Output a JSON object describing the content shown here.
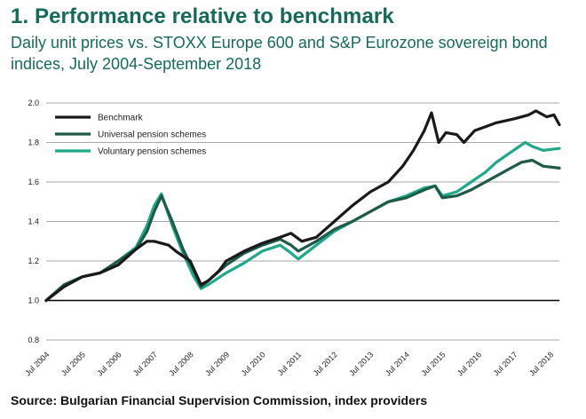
{
  "title": "1. Performance relative to benchmark",
  "subtitle": "Daily unit prices vs. STOXX Europe 600 and S&P Eurozone sovereign bond indices, July 2004-September 2018",
  "source": "Source: Bulgarian Financial Supervision Commission, index providers",
  "colors": {
    "title": "#166a5a",
    "benchmark": "#1a1a1a",
    "universal": "#1e5a48",
    "voluntary": "#1fa98a",
    "grid": "#555555",
    "baseline": "#000000"
  },
  "chart_data": {
    "type": "line",
    "ylim": [
      0.8,
      2.0
    ],
    "yticks": [
      "2.0",
      "1.8",
      "1.6",
      "1.4",
      "1.2",
      "1.0",
      "0.8"
    ],
    "xlim": [
      2004.5,
      2018.75
    ],
    "xtick_labels": [
      "Jul 2004",
      "Jul 2005",
      "Jul 2006",
      "Jul 2007",
      "Jul 2008",
      "Jul 2009",
      "Jul 2010",
      "Jul 2011",
      "Jul 2012",
      "Jul 2013",
      "Jul 2014",
      "Jul 2015",
      "Jul 2016",
      "Jul 2017",
      "Jul 2018"
    ],
    "grid": true,
    "legend_position": "top-left",
    "series": [
      {
        "name": "Benchmark",
        "x": [
          2004.5,
          2005.0,
          2005.5,
          2006.0,
          2006.5,
          2007.0,
          2007.3,
          2007.5,
          2007.9,
          2008.1,
          2008.5,
          2008.8,
          2009.0,
          2009.3,
          2009.5,
          2010.0,
          2010.5,
          2011.0,
          2011.3,
          2011.6,
          2012.0,
          2012.5,
          2013.0,
          2013.5,
          2014.0,
          2014.4,
          2014.7,
          2015.0,
          2015.2,
          2015.4,
          2015.6,
          2015.9,
          2016.1,
          2016.4,
          2016.7,
          2017.0,
          2017.5,
          2017.9,
          2018.1,
          2018.4,
          2018.6,
          2018.75
        ],
        "y": [
          1.0,
          1.07,
          1.12,
          1.14,
          1.18,
          1.26,
          1.3,
          1.3,
          1.28,
          1.25,
          1.2,
          1.08,
          1.1,
          1.15,
          1.2,
          1.25,
          1.29,
          1.32,
          1.34,
          1.3,
          1.32,
          1.4,
          1.48,
          1.55,
          1.6,
          1.68,
          1.76,
          1.86,
          1.95,
          1.8,
          1.85,
          1.84,
          1.8,
          1.86,
          1.88,
          1.9,
          1.92,
          1.94,
          1.96,
          1.93,
          1.94,
          1.89
        ]
      },
      {
        "name": "Universal pension schemes",
        "x": [
          2004.5,
          2005.0,
          2005.5,
          2006.0,
          2006.5,
          2007.0,
          2007.3,
          2007.5,
          2007.7,
          2008.0,
          2008.3,
          2008.6,
          2008.8,
          2009.0,
          2009.5,
          2010.0,
          2010.5,
          2011.0,
          2011.3,
          2011.5,
          2012.0,
          2012.5,
          2013.0,
          2013.5,
          2014.0,
          2014.5,
          2015.0,
          2015.3,
          2015.5,
          2015.9,
          2016.3,
          2016.7,
          2017.0,
          2017.4,
          2017.7,
          2018.0,
          2018.3,
          2018.75
        ],
        "y": [
          1.0,
          1.08,
          1.12,
          1.14,
          1.2,
          1.26,
          1.35,
          1.45,
          1.53,
          1.4,
          1.26,
          1.15,
          1.07,
          1.1,
          1.18,
          1.24,
          1.28,
          1.31,
          1.28,
          1.25,
          1.3,
          1.36,
          1.4,
          1.45,
          1.5,
          1.52,
          1.56,
          1.58,
          1.52,
          1.53,
          1.56,
          1.6,
          1.63,
          1.67,
          1.7,
          1.71,
          1.68,
          1.67
        ]
      },
      {
        "name": "Voluntary pension schemes",
        "x": [
          2004.5,
          2005.0,
          2005.5,
          2006.0,
          2006.5,
          2007.0,
          2007.3,
          2007.5,
          2007.7,
          2008.0,
          2008.3,
          2008.6,
          2008.8,
          2009.0,
          2009.5,
          2010.0,
          2010.5,
          2011.0,
          2011.3,
          2011.5,
          2012.0,
          2012.5,
          2013.0,
          2013.5,
          2014.0,
          2014.5,
          2015.0,
          2015.3,
          2015.5,
          2015.9,
          2016.3,
          2016.7,
          2017.0,
          2017.4,
          2017.8,
          2018.0,
          2018.3,
          2018.75
        ],
        "y": [
          1.0,
          1.08,
          1.12,
          1.14,
          1.2,
          1.27,
          1.38,
          1.48,
          1.54,
          1.38,
          1.24,
          1.12,
          1.06,
          1.08,
          1.14,
          1.19,
          1.25,
          1.28,
          1.24,
          1.21,
          1.28,
          1.35,
          1.4,
          1.45,
          1.5,
          1.53,
          1.57,
          1.58,
          1.53,
          1.55,
          1.6,
          1.65,
          1.7,
          1.75,
          1.8,
          1.78,
          1.76,
          1.77
        ]
      }
    ]
  }
}
